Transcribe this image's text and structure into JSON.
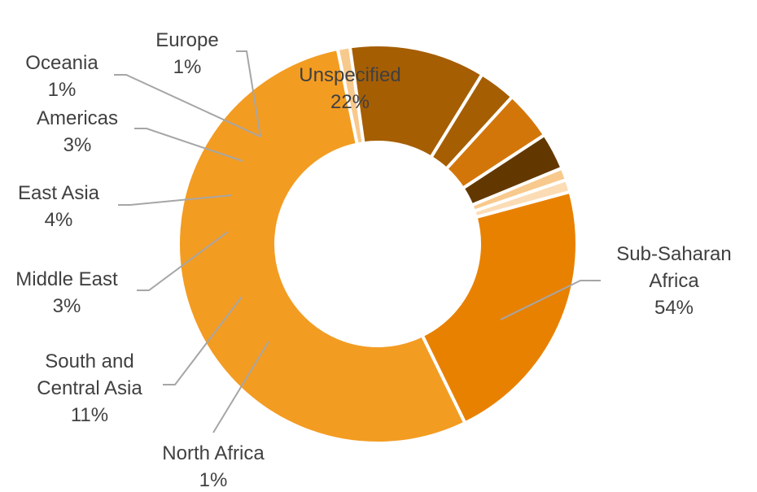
{
  "chart_data": {
    "type": "donut",
    "title": "",
    "slices": [
      {
        "name": "Sub-Saharan Africa",
        "value": 54,
        "label_lines": [
          "Sub-Saharan",
          "Africa",
          "54%"
        ],
        "color": "#f39c22"
      },
      {
        "name": "North Africa",
        "value": 1,
        "label_lines": [
          "North Africa",
          "1%"
        ],
        "color": "#f8c98c"
      },
      {
        "name": "South and Central Asia",
        "value": 11,
        "label_lines": [
          "South and",
          "Central Asia",
          "11%"
        ],
        "color": "#a65e02"
      },
      {
        "name": "Middle East",
        "value": 3,
        "label_lines": [
          "Middle East",
          "3%"
        ],
        "color": "#a65e02"
      },
      {
        "name": "East Asia",
        "value": 4,
        "label_lines": [
          "East Asia",
          "4%"
        ],
        "color": "#d3760a"
      },
      {
        "name": "Americas",
        "value": 3,
        "label_lines": [
          "Americas",
          "3%"
        ],
        "color": "#633800"
      },
      {
        "name": "Oceania",
        "value": 1,
        "label_lines": [
          "Oceania",
          "1%"
        ],
        "color": "#f8c98c"
      },
      {
        "name": "Europe",
        "value": 1,
        "label_lines": [
          "Europe",
          "1%"
        ],
        "color": "#fbdcb5"
      },
      {
        "name": "Unspecified",
        "value": 22,
        "label_lines": [
          "Unspecified",
          "22%"
        ],
        "color": "#e98100"
      }
    ]
  }
}
